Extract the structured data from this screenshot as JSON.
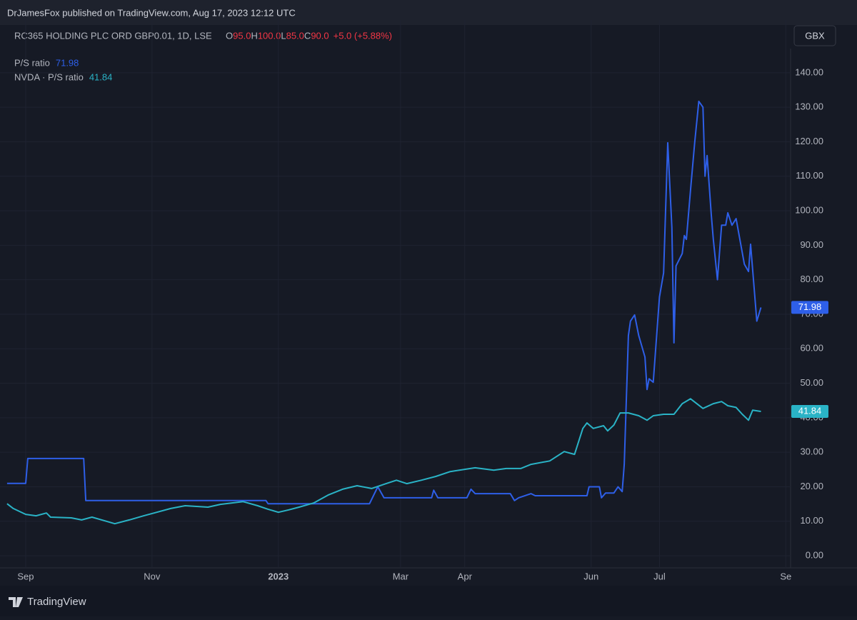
{
  "header": {
    "publisher": "DrJamesFox published on TradingView.com, Aug 17, 2023 12:12 UTC",
    "symbol": "RC365 HOLDING PLC ORD GBP0.01, 1D, LSE",
    "ohlc": [
      "O",
      "95.0",
      "H",
      "100.0",
      "L",
      "85.0",
      "C",
      "90.0"
    ],
    "change": "+5.0 (+5.88%)",
    "currency": "GBX"
  },
  "footer": {
    "brand": "TradingView"
  },
  "chart_data": {
    "type": "line",
    "grid": true,
    "xlim": [
      -12.4,
      369.3
    ],
    "xticks": [
      {
        "value": 0,
        "label": "Sep"
      },
      {
        "value": 61,
        "label": "Nov"
      },
      {
        "value": 122,
        "label": "2023"
      },
      {
        "value": 181,
        "label": "Mar"
      },
      {
        "value": 212,
        "label": "Apr"
      },
      {
        "value": 273,
        "label": "Jun"
      },
      {
        "value": 306,
        "label": "Jul"
      },
      {
        "value": 367,
        "label": "Se"
      }
    ],
    "ylim": [
      -3.5,
      147
    ],
    "yticks": [
      {
        "value": 0,
        "label": "0.00"
      },
      {
        "value": 10,
        "label": "10.00"
      },
      {
        "value": 20,
        "label": "20.00"
      },
      {
        "value": 30,
        "label": "30.00"
      },
      {
        "value": 40,
        "label": "40.00"
      },
      {
        "value": 50,
        "label": "50.00"
      },
      {
        "value": 60,
        "label": "60.00"
      },
      {
        "value": 70,
        "label": "70.00"
      },
      {
        "value": 80,
        "label": "80.00"
      },
      {
        "value": 90,
        "label": "90.00"
      },
      {
        "value": 100,
        "label": "100.00"
      },
      {
        "value": 110,
        "label": "110.00"
      },
      {
        "value": 120,
        "label": "120.00"
      },
      {
        "value": 130,
        "label": "130.00"
      },
      {
        "value": 140,
        "label": "140.00"
      }
    ],
    "series": [
      {
        "name": "P/S ratio",
        "color": "#2e5fe8",
        "x": [
          -9,
          0,
          1,
          28,
          29,
          116,
          117,
          166,
          170,
          173,
          196,
          197,
          199,
          213,
          215,
          217,
          234,
          236,
          238,
          244,
          246,
          271,
          272,
          277,
          278,
          280,
          284,
          286,
          288,
          289,
          291,
          292,
          294,
          296,
          299,
          300,
          301,
          303,
          306,
          308,
          310,
          312,
          313,
          314,
          317,
          318,
          319,
          321,
          323,
          325,
          327,
          328,
          329,
          331,
          332,
          334,
          336,
          338,
          339,
          341,
          343,
          347,
          349,
          350,
          353,
          355
        ],
        "values": [
          21,
          21,
          28.2,
          28.2,
          16,
          16,
          15.1,
          15.1,
          20,
          16.8,
          16.8,
          19,
          16.8,
          16.8,
          19.3,
          18,
          18,
          16,
          16.8,
          18,
          17.4,
          17.4,
          20,
          20,
          16.8,
          18.2,
          18.2,
          20,
          18.6,
          26.5,
          63.8,
          68,
          69.8,
          63.8,
          57.6,
          48.2,
          51.3,
          50.3,
          75,
          82,
          119.7,
          95,
          61.7,
          84,
          87.6,
          92.8,
          91.7,
          106,
          119.7,
          131.7,
          130,
          110,
          116,
          99,
          91.7,
          80,
          95.8,
          95.8,
          99.4,
          95.8,
          97.7,
          84.5,
          82.4,
          90.3,
          68,
          71.98
        ]
      },
      {
        "name": "NVDA · P/S ratio",
        "color": "#2ab3c6",
        "x": [
          -9,
          -6,
          0,
          5,
          10,
          12,
          22,
          27,
          32,
          39,
          43,
          50,
          57,
          62,
          70,
          77,
          88,
          94,
          105,
          112,
          117,
          122,
          127,
          132,
          139,
          146,
          153,
          160,
          167,
          174,
          179,
          184,
          191,
          198,
          205,
          217,
          226,
          232,
          239,
          244,
          253,
          260,
          265,
          269,
          271,
          274,
          279,
          281,
          284,
          287,
          291,
          296,
          300,
          303,
          308,
          313,
          317,
          321,
          327,
          332,
          336,
          339,
          343,
          346,
          349,
          351,
          355
        ],
        "values": [
          15.1,
          13.7,
          12,
          11.6,
          12.4,
          11.2,
          11,
          10.4,
          11.2,
          10,
          9.3,
          10.4,
          11.6,
          12.4,
          13.7,
          14.5,
          14.1,
          14.9,
          15.7,
          14.5,
          13.5,
          12.6,
          13.3,
          14.1,
          15.3,
          17.6,
          19.3,
          20.3,
          19.5,
          20.9,
          21.9,
          20.9,
          21.9,
          23,
          24.4,
          25.5,
          24.8,
          25.3,
          25.3,
          26.5,
          27.5,
          30.2,
          29.4,
          36.9,
          38.5,
          36.9,
          37.7,
          36.2,
          37.9,
          41.4,
          41.4,
          40.6,
          39.3,
          40.6,
          41,
          41,
          44.1,
          45.5,
          42.7,
          44.1,
          44.7,
          43.5,
          43,
          41,
          39.3,
          42.2,
          41.84
        ]
      }
    ]
  }
}
